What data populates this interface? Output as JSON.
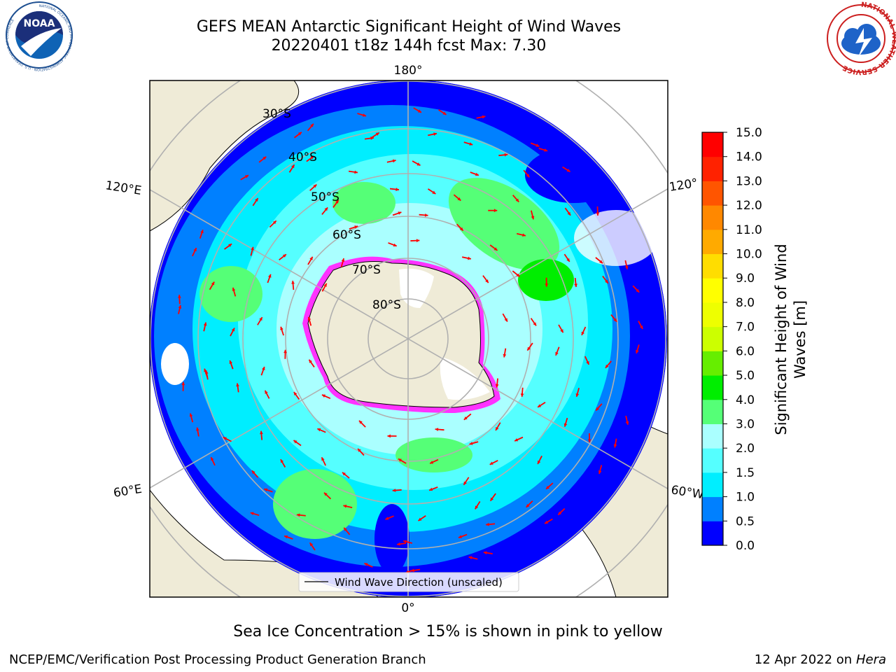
{
  "title": {
    "line1": "GEFS MEAN Antarctic Significant Height of Wind Waves",
    "line2": "20220401 t18z 144h fcst   Max: 7.30"
  },
  "logos": {
    "noaa": {
      "text": "NOAA",
      "ring_text": "NATIONAL OCEANIC AND ATMOSPHERIC ADMINISTRATION · U.S. DEPARTMENT OF COMMERCE"
    },
    "nws": {
      "ring_text": "NATIONAL WEATHER SERVICE"
    }
  },
  "map": {
    "longitude_labels": {
      "top": "180°",
      "bottom": "0°",
      "upper_left": "120°E",
      "upper_right": "120°",
      "lower_left": "60°E",
      "lower_right": "60°W"
    },
    "latitude_labels": [
      "30°S",
      "40°S",
      "50°S",
      "60°S",
      "70°S",
      "80°S"
    ],
    "legend": "Wind Wave Direction (unscaled)",
    "colors": {
      "ocean_deep": "#0000ff",
      "ocean_low": "#0080ff",
      "ocean_mid": "#00ffff",
      "land": "#efebd7",
      "arrow": "#ff0000",
      "ice_edge": "#ff33ff",
      "grid": "#b0b0b0"
    }
  },
  "colorbar": {
    "label_line1": "Significant Height of Wind",
    "label_line2": "Waves [m]",
    "ticks": [
      "0.0",
      "0.5",
      "1.0",
      "1.5",
      "2.0",
      "3.0",
      "4.0",
      "5.0",
      "6.0",
      "7.0",
      "8.0",
      "9.0",
      "10.0",
      "11.0",
      "12.0",
      "13.0",
      "14.0",
      "15.0"
    ],
    "colors": [
      "#0000ff",
      "#0080ff",
      "#00eeff",
      "#55ffff",
      "#aaffff",
      "#55ff77",
      "#00ee00",
      "#66ee00",
      "#ccff00",
      "#eeff00",
      "#ffff00",
      "#ffdd00",
      "#ffaa00",
      "#ff8800",
      "#ff5500",
      "#ff2200",
      "#ff0000"
    ]
  },
  "footer": {
    "note": "Sea Ice Concentration > 15% is shown in pink to yellow",
    "left": "NCEP/EMC/Verification Post Processing Product Generation Branch",
    "right_date": "12 Apr 2022 on ",
    "right_host": "Hera"
  }
}
